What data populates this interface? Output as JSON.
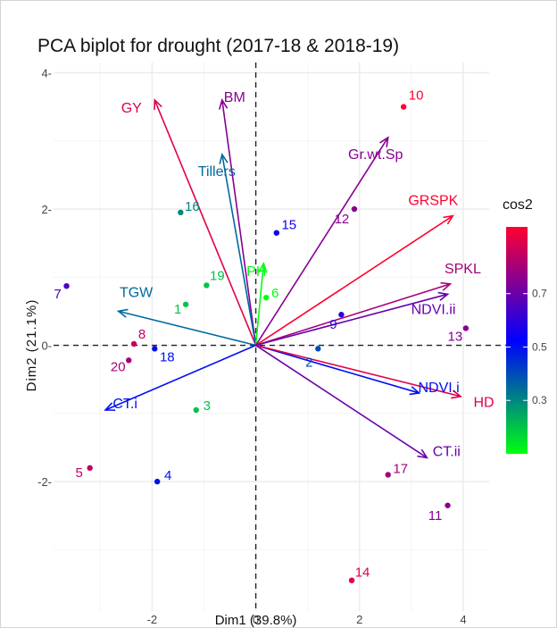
{
  "chart_data": {
    "type": "scatter",
    "title": "PCA biplot for drought (2017-18 & 2018-19)",
    "xlabel": "Dim1 (39.8%)",
    "ylabel": "Dim2 (21.1%)",
    "xlim": [
      -3.9,
      4.5
    ],
    "ylim": [
      -3.9,
      4.15
    ],
    "x_ticks": [
      -2,
      0,
      2,
      4
    ],
    "y_ticks": [
      -2,
      0,
      2,
      4
    ],
    "x_tick_labels": [
      "-2",
      "0",
      "2",
      "4"
    ],
    "y_tick_labels": [
      "-2-",
      "0-",
      "2-",
      "4-"
    ],
    "grid": true,
    "legend_position": "right",
    "legend": {
      "title": "cos2",
      "ticks": [
        0.3,
        0.5,
        0.7
      ],
      "tick_labels": [
        "0.3",
        "0.5",
        "0.7"
      ],
      "range": [
        0.1,
        0.95
      ],
      "colors": [
        "#00ff10",
        "#0000ff",
        "#ff0030"
      ]
    },
    "points": [
      {
        "label": "1",
        "x": -1.35,
        "y": 0.6,
        "cos2": 0.2
      },
      {
        "label": "2",
        "x": 1.2,
        "y": -0.05,
        "cos2": 0.4
      },
      {
        "label": "3",
        "x": -1.15,
        "y": -0.95,
        "cos2": 0.2
      },
      {
        "label": "4",
        "x": -1.9,
        "y": -2.0,
        "cos2": 0.5
      },
      {
        "label": "5",
        "x": -3.2,
        "y": -1.8,
        "cos2": 0.85
      },
      {
        "label": "6",
        "x": 0.2,
        "y": 0.7,
        "cos2": 0.1
      },
      {
        "label": "7",
        "x": -3.65,
        "y": 0.87,
        "cos2": 0.65
      },
      {
        "label": "8",
        "x": -2.35,
        "y": 0.02,
        "cos2": 0.85
      },
      {
        "label": "9",
        "x": 1.65,
        "y": 0.45,
        "cos2": 0.6
      },
      {
        "label": "10",
        "x": 2.85,
        "y": 3.5,
        "cos2": 0.95
      },
      {
        "label": "11",
        "x": 3.7,
        "y": -2.35,
        "cos2": 0.75
      },
      {
        "label": "12",
        "x": 1.9,
        "y": 2.0,
        "cos2": 0.75
      },
      {
        "label": "13",
        "x": 4.05,
        "y": 0.25,
        "cos2": 0.75
      },
      {
        "label": "14",
        "x": 1.85,
        "y": -3.45,
        "cos2": 0.9
      },
      {
        "label": "15",
        "x": 0.4,
        "y": 1.65,
        "cos2": 0.55
      },
      {
        "label": "16",
        "x": -1.45,
        "y": 1.95,
        "cos2": 0.3
      },
      {
        "label": "17",
        "x": 2.55,
        "y": -1.9,
        "cos2": 0.8
      },
      {
        "label": "18",
        "x": -1.95,
        "y": -0.05,
        "cos2": 0.5
      },
      {
        "label": "19",
        "x": -0.95,
        "y": 0.88,
        "cos2": 0.2
      },
      {
        "label": "20",
        "x": -2.45,
        "y": -0.22,
        "cos2": 0.8
      }
    ],
    "variables": [
      {
        "name": "GY",
        "x": -1.95,
        "y": 3.6,
        "cos2": 0.9
      },
      {
        "name": "BM",
        "x": -0.65,
        "y": 3.6,
        "cos2": 0.75
      },
      {
        "name": "Tillers",
        "x": -0.65,
        "y": 2.8,
        "cos2": 0.35
      },
      {
        "name": "PH",
        "x": 0.15,
        "y": 1.2,
        "cos2": 0.1
      },
      {
        "name": "TGW",
        "x": -2.65,
        "y": 0.5,
        "cos2": 0.35
      },
      {
        "name": "CT.i",
        "x": -2.9,
        "y": -0.95,
        "cos2": 0.5
      },
      {
        "name": "Gr.wt.Sp",
        "x": 2.55,
        "y": 3.05,
        "cos2": 0.75
      },
      {
        "name": "GRSPK",
        "x": 3.8,
        "y": 1.9,
        "cos2": 0.95
      },
      {
        "name": "SPKL",
        "x": 3.75,
        "y": 0.9,
        "cos2": 0.8
      },
      {
        "name": "NDVI.ii",
        "x": 3.7,
        "y": 0.75,
        "cos2": 0.7
      },
      {
        "name": "NDVI.i",
        "x": 3.15,
        "y": -0.7,
        "cos2": 0.5
      },
      {
        "name": "HD",
        "x": 3.95,
        "y": -0.75,
        "cos2": 0.9
      },
      {
        "name": "CT.ii",
        "x": 3.3,
        "y": -1.65,
        "cos2": 0.7
      }
    ]
  }
}
